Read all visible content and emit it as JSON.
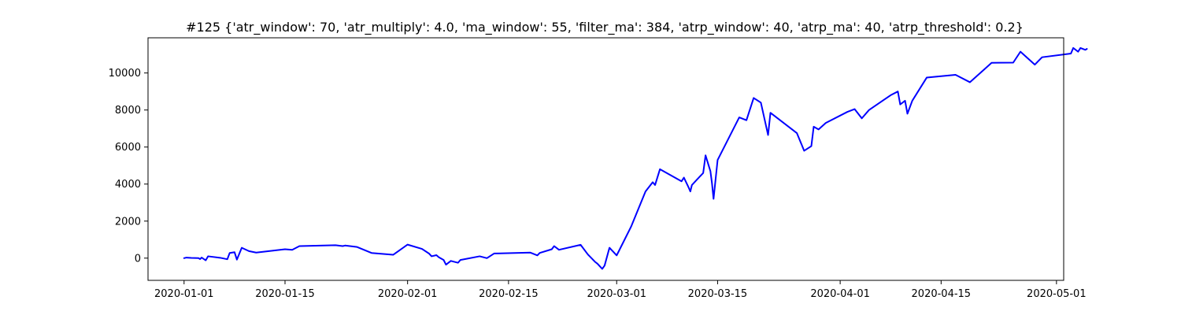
{
  "chart_data": {
    "type": "line",
    "title": "#125 {'atr_window': 70, 'atr_multiply': 4.0, 'ma_window': 55, 'filter_ma': 384, 'atrp_window': 40, 'atrp_ma': 40, 'atrp_threshold': 0.2}",
    "xlabel": "",
    "ylabel": "",
    "grid": false,
    "legend": "none",
    "x_type": "date",
    "xlim": [
      "2019-12-27",
      "2020-05-02"
    ],
    "ylim": [
      -1200,
      11900
    ],
    "x_ticks": [
      "2020-01-01",
      "2020-01-15",
      "2020-02-01",
      "2020-02-15",
      "2020-03-01",
      "2020-03-15",
      "2020-04-01",
      "2020-04-15",
      "2020-05-01"
    ],
    "x_tick_labels": [
      "2020-01-01",
      "2020-01-15",
      "2020-02-01",
      "2020-02-15",
      "2020-03-01",
      "2020-03-15",
      "2020-04-01",
      "2020-04-15",
      "2020-05-01"
    ],
    "y_ticks": [
      0,
      2000,
      4000,
      6000,
      8000,
      10000
    ],
    "y_tick_labels": [
      "0",
      "2000",
      "4000",
      "6000",
      "8000",
      "10000"
    ],
    "series": [
      {
        "color": "#0000ff",
        "points": [
          [
            "2020-01-01",
            0
          ],
          [
            "2020-01-01",
            30
          ],
          [
            "2020-01-02",
            10
          ],
          [
            "2020-01-03",
            0
          ],
          [
            "2020-01-03",
            -50
          ],
          [
            "2020-01-03",
            30
          ],
          [
            "2020-01-04",
            -120
          ],
          [
            "2020-01-04",
            100
          ],
          [
            "2020-01-06",
            20
          ],
          [
            "2020-01-07",
            -60
          ],
          [
            "2020-01-07",
            280
          ],
          [
            "2020-01-08",
            320
          ],
          [
            "2020-01-08",
            -80
          ],
          [
            "2020-01-09",
            560
          ],
          [
            "2020-01-10",
            380
          ],
          [
            "2020-01-11",
            300
          ],
          [
            "2020-01-15",
            480
          ],
          [
            "2020-01-16",
            450
          ],
          [
            "2020-01-17",
            650
          ],
          [
            "2020-01-22",
            700
          ],
          [
            "2020-01-23",
            650
          ],
          [
            "2020-01-23",
            680
          ],
          [
            "2020-01-25",
            600
          ],
          [
            "2020-01-27",
            280
          ],
          [
            "2020-01-30",
            180
          ],
          [
            "2020-02-01",
            730
          ],
          [
            "2020-02-03",
            500
          ],
          [
            "2020-02-04",
            240
          ],
          [
            "2020-02-04",
            100
          ],
          [
            "2020-02-05",
            160
          ],
          [
            "2020-02-05",
            50
          ],
          [
            "2020-02-06",
            -100
          ],
          [
            "2020-02-06",
            -350
          ],
          [
            "2020-02-07",
            -150
          ],
          [
            "2020-02-08",
            -250
          ],
          [
            "2020-02-08",
            -100
          ],
          [
            "2020-02-11",
            100
          ],
          [
            "2020-02-12",
            0
          ],
          [
            "2020-02-13",
            250
          ],
          [
            "2020-02-18",
            300
          ],
          [
            "2020-02-19",
            150
          ],
          [
            "2020-02-19",
            280
          ],
          [
            "2020-02-21",
            480
          ],
          [
            "2020-02-21",
            650
          ],
          [
            "2020-02-22",
            450
          ],
          [
            "2020-02-25",
            720
          ],
          [
            "2020-02-26",
            200
          ],
          [
            "2020-02-27",
            -200
          ],
          [
            "2020-02-27",
            -300
          ],
          [
            "2020-02-28",
            -580
          ],
          [
            "2020-02-28",
            -400
          ],
          [
            "2020-02-29",
            560
          ],
          [
            "2020-03-01",
            150
          ],
          [
            "2020-03-01",
            400
          ],
          [
            "2020-03-03",
            1700
          ],
          [
            "2020-03-05",
            3600
          ],
          [
            "2020-03-06",
            4100
          ],
          [
            "2020-03-06",
            3950
          ],
          [
            "2020-03-07",
            4800
          ],
          [
            "2020-03-10",
            4150
          ],
          [
            "2020-03-10",
            4350
          ],
          [
            "2020-03-11",
            3800
          ],
          [
            "2020-03-11",
            3600
          ],
          [
            "2020-03-11",
            3950
          ],
          [
            "2020-03-13",
            4600
          ],
          [
            "2020-03-13",
            5550
          ],
          [
            "2020-03-14",
            4700
          ],
          [
            "2020-03-14",
            4050
          ],
          [
            "2020-03-14",
            3200
          ],
          [
            "2020-03-15",
            5300
          ],
          [
            "2020-03-18",
            7600
          ],
          [
            "2020-03-19",
            7450
          ],
          [
            "2020-03-20",
            8650
          ],
          [
            "2020-03-21",
            8400
          ],
          [
            "2020-03-22",
            6650
          ],
          [
            "2020-03-22",
            7850
          ],
          [
            "2020-03-26",
            6750
          ],
          [
            "2020-03-27",
            5800
          ],
          [
            "2020-03-28",
            6050
          ],
          [
            "2020-03-28",
            7100
          ],
          [
            "2020-03-29",
            6950
          ],
          [
            "2020-03-30",
            7300
          ],
          [
            "2020-04-02",
            7900
          ],
          [
            "2020-04-03",
            8050
          ],
          [
            "2020-04-04",
            7550
          ],
          [
            "2020-04-05",
            8000
          ],
          [
            "2020-04-08",
            8800
          ],
          [
            "2020-04-09",
            9000
          ],
          [
            "2020-04-09",
            8300
          ],
          [
            "2020-04-10",
            8500
          ],
          [
            "2020-04-10",
            7800
          ],
          [
            "2020-04-11",
            8500
          ],
          [
            "2020-04-13",
            9750
          ],
          [
            "2020-04-17",
            9900
          ],
          [
            "2020-04-19",
            9500
          ],
          [
            "2020-04-21",
            10200
          ],
          [
            "2020-04-22",
            10550
          ],
          [
            "2020-04-25",
            10560
          ],
          [
            "2020-04-26",
            11150
          ],
          [
            "2020-04-28",
            10450
          ],
          [
            "2020-04-29",
            10850
          ],
          [
            "2020-05-03",
            11050
          ],
          [
            "2020-05-03",
            11350
          ],
          [
            "2020-05-04",
            11150
          ],
          [
            "2020-05-04",
            11350
          ],
          [
            "2020-05-05",
            11250
          ],
          [
            "2020-05-05",
            11300
          ]
        ]
      }
    ]
  }
}
